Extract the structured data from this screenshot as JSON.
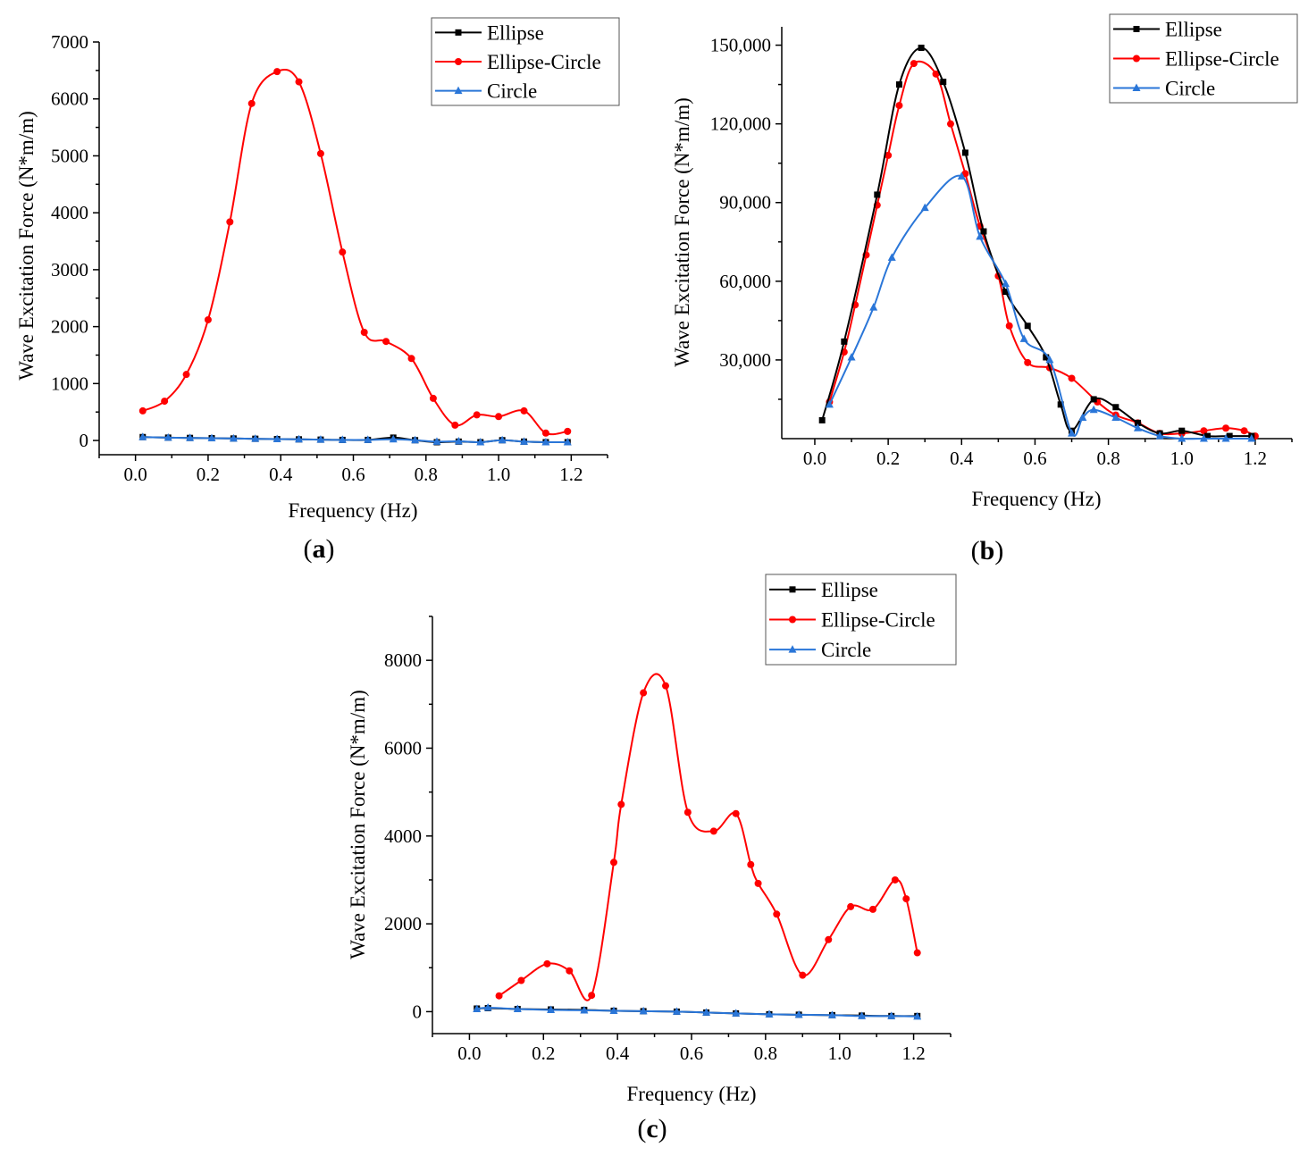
{
  "colors": {
    "Ellipse": "#000000",
    "Ellipse-Circle": "#ff0000",
    "Circle": "#2a76d8"
  },
  "chart_data": [
    {
      "type": "line",
      "panel_label": "a",
      "xlabel": "Frequency (Hz)",
      "ylabel": "Wave Excitation Force (N*m/m)",
      "xlim": [
        -0.1,
        1.3
      ],
      "ylim": [
        -250,
        7000
      ],
      "xticks": [
        0.0,
        0.2,
        0.4,
        0.6,
        0.8,
        1.0,
        1.2
      ],
      "xtick_labels": [
        "0.0",
        "0.2",
        "0.4",
        "0.6",
        "0.8",
        "1.0",
        "1.2"
      ],
      "yticks": [
        0,
        1000,
        2000,
        3000,
        4000,
        5000,
        6000,
        7000
      ],
      "ytick_labels": [
        "0",
        "1000",
        "2000",
        "3000",
        "4000",
        "5000",
        "6000",
        "7000"
      ],
      "legend_position": "top-right",
      "series": [
        {
          "name": "Ellipse",
          "marker": "square",
          "x": [
            0.02,
            0.09,
            0.15,
            0.21,
            0.27,
            0.33,
            0.39,
            0.45,
            0.51,
            0.57,
            0.64,
            0.71,
            0.77,
            0.83,
            0.89,
            0.95,
            1.01,
            1.07,
            1.13,
            1.19
          ],
          "y": [
            60,
            50,
            45,
            40,
            35,
            30,
            25,
            20,
            15,
            10,
            10,
            50,
            5,
            -30,
            -20,
            -30,
            5,
            -20,
            -30,
            -30
          ]
        },
        {
          "name": "Ellipse-Circle",
          "marker": "circle",
          "x": [
            0.02,
            0.08,
            0.14,
            0.2,
            0.26,
            0.32,
            0.39,
            0.45,
            0.51,
            0.57,
            0.63,
            0.69,
            0.76,
            0.82,
            0.88,
            0.94,
            1.0,
            1.07,
            1.13,
            1.19
          ],
          "y": [
            520,
            690,
            1160,
            2120,
            3840,
            5920,
            6480,
            6300,
            5040,
            3310,
            1900,
            1740,
            1440,
            740,
            270,
            450,
            420,
            520,
            130,
            160
          ]
        },
        {
          "name": "Circle",
          "marker": "triangle",
          "x": [
            0.02,
            0.09,
            0.15,
            0.21,
            0.27,
            0.33,
            0.39,
            0.45,
            0.51,
            0.57,
            0.64,
            0.71,
            0.77,
            0.83,
            0.89,
            0.95,
            1.01,
            1.07,
            1.13,
            1.19
          ],
          "y": [
            60,
            50,
            45,
            40,
            35,
            30,
            25,
            20,
            15,
            10,
            10,
            20,
            5,
            -20,
            -15,
            -30,
            5,
            -20,
            -30,
            -30
          ]
        }
      ]
    },
    {
      "type": "line",
      "panel_label": "b",
      "xlabel": "Frequency (Hz)",
      "ylabel": "Wave Excitation Force (N*m/m)",
      "xlim": [
        -0.09,
        1.3
      ],
      "ylim": [
        0,
        157000
      ],
      "xticks": [
        0.0,
        0.2,
        0.4,
        0.6,
        0.8,
        1.0,
        1.2
      ],
      "xtick_labels": [
        "0.0",
        "0.2",
        "0.4",
        "0.6",
        "0.8",
        "1.0",
        "1.2"
      ],
      "yticks": [
        30000,
        60000,
        90000,
        120000,
        150000
      ],
      "ytick_labels": [
        "30,000",
        "60,000",
        "90,000",
        "120,000",
        "150,000"
      ],
      "legend_position": "top-right",
      "series": [
        {
          "name": "Ellipse",
          "marker": "square",
          "x": [
            0.02,
            0.08,
            0.17,
            0.23,
            0.29,
            0.35,
            0.41,
            0.46,
            0.52,
            0.58,
            0.63,
            0.67,
            0.7,
            0.76,
            0.82,
            0.88,
            0.94,
            1.0,
            1.07,
            1.13,
            1.19
          ],
          "y": [
            7000,
            37000,
            93000,
            135000,
            149000,
            136000,
            109000,
            79000,
            56000,
            43000,
            31000,
            13000,
            3000,
            15000,
            12000,
            6000,
            2000,
            3000,
            1000,
            1000,
            1000
          ]
        },
        {
          "name": "Ellipse-Circle",
          "marker": "circle",
          "x": [
            0.04,
            0.08,
            0.11,
            0.14,
            0.17,
            0.2,
            0.23,
            0.27,
            0.33,
            0.37,
            0.41,
            0.45,
            0.5,
            0.53,
            0.58,
            0.64,
            0.7,
            0.77,
            0.82,
            0.88,
            0.94,
            1.0,
            1.06,
            1.12,
            1.17,
            1.2
          ],
          "y": [
            14000,
            33000,
            51000,
            70000,
            89000,
            108000,
            127000,
            143000,
            139000,
            120000,
            101000,
            81000,
            62000,
            43000,
            29000,
            27000,
            23000,
            14000,
            9000,
            6000,
            2000,
            2000,
            3000,
            4000,
            3000,
            1000
          ]
        },
        {
          "name": "Circle",
          "marker": "triangle",
          "x": [
            0.04,
            0.1,
            0.16,
            0.21,
            0.3,
            0.4,
            0.45,
            0.52,
            0.57,
            0.64,
            0.7,
            0.73,
            0.76,
            0.82,
            0.88,
            0.94,
            1.0,
            1.06,
            1.12,
            1.19
          ],
          "y": [
            13000,
            31000,
            50000,
            69000,
            88000,
            100000,
            77000,
            59000,
            38000,
            30000,
            2000,
            8000,
            11000,
            8000,
            4000,
            1000,
            0,
            0,
            0,
            0
          ]
        }
      ]
    },
    {
      "type": "line",
      "panel_label": "c",
      "xlabel": "Frequency (Hz)",
      "ylabel": "Wave Excitation Force (N*m/m)",
      "xlim": [
        -0.1,
        1.3
      ],
      "ylim": [
        -500,
        9000
      ],
      "xticks": [
        0.0,
        0.2,
        0.4,
        0.6,
        0.8,
        1.0,
        1.2
      ],
      "xtick_labels": [
        "0.0",
        "0.2",
        "0.4",
        "0.6",
        "0.8",
        "1.0",
        "1.2"
      ],
      "yticks": [
        0,
        2000,
        4000,
        6000,
        8000
      ],
      "ytick_labels": [
        "0",
        "2000",
        "4000",
        "6000",
        "8000"
      ],
      "legend_position": "top-right",
      "series": [
        {
          "name": "Ellipse",
          "marker": "square",
          "x": [
            0.02,
            0.05,
            0.13,
            0.22,
            0.31,
            0.39,
            0.47,
            0.56,
            0.64,
            0.72,
            0.81,
            0.89,
            0.98,
            1.06,
            1.14,
            1.21
          ],
          "y": [
            70,
            80,
            60,
            50,
            40,
            20,
            10,
            0,
            -20,
            -40,
            -60,
            -70,
            -80,
            -90,
            -100,
            -100
          ]
        },
        {
          "name": "Ellipse-Circle",
          "marker": "circle",
          "x": [
            0.08,
            0.14,
            0.21,
            0.27,
            0.33,
            0.39,
            0.41,
            0.47,
            0.53,
            0.59,
            0.66,
            0.72,
            0.76,
            0.78,
            0.83,
            0.9,
            0.97,
            1.03,
            1.09,
            1.15,
            1.18,
            1.21
          ],
          "y": [
            360,
            710,
            1090,
            930,
            370,
            3400,
            4720,
            7260,
            7420,
            4540,
            4110,
            4510,
            3350,
            2920,
            2220,
            830,
            1640,
            2390,
            2330,
            3000,
            2570,
            1340
          ]
        },
        {
          "name": "Circle",
          "marker": "triangle",
          "x": [
            0.02,
            0.05,
            0.13,
            0.22,
            0.31,
            0.39,
            0.47,
            0.56,
            0.64,
            0.72,
            0.81,
            0.89,
            0.98,
            1.06,
            1.14,
            1.21
          ],
          "y": [
            60,
            90,
            60,
            40,
            30,
            20,
            10,
            0,
            -20,
            -40,
            -60,
            -70,
            -80,
            -100,
            -100,
            -110
          ]
        }
      ]
    }
  ]
}
